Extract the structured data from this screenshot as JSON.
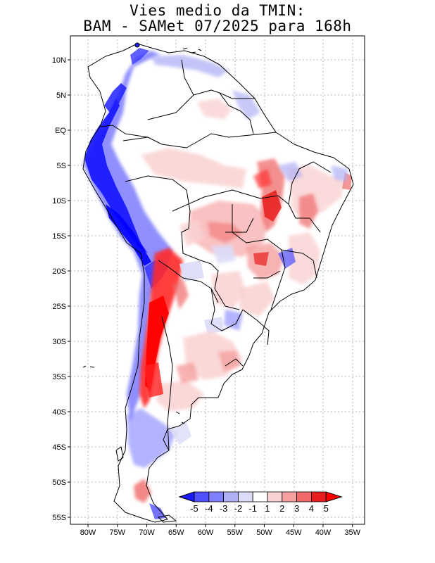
{
  "title": {
    "line1": "Vies medio da TMIN:",
    "line2": "BAM - SAMet 07/2025  para 168h"
  },
  "map": {
    "lat_labels": [
      "10N",
      "5N",
      "EQ",
      "5S",
      "10S",
      "15S",
      "20S",
      "25S",
      "30S",
      "35S",
      "40S",
      "45S",
      "50S",
      "55S"
    ],
    "lon_labels": [
      "80W",
      "75W",
      "70W",
      "65W",
      "60W",
      "55W",
      "50W",
      "45W",
      "40W",
      "35W"
    ],
    "lat_range": [
      -55.5,
      13.5
    ],
    "lon_range": [
      -83,
      -35
    ]
  },
  "colorbar": {
    "labels": [
      "-5",
      "-4",
      "-3",
      "-2",
      "-1",
      "1",
      "2",
      "3",
      "4",
      "5"
    ],
    "colors": [
      "#1a1aff",
      "#5050ff",
      "#8080ff",
      "#b0b0f6",
      "#dcdcf8",
      "#ffffff",
      "#fad2d2",
      "#f6a0a0",
      "#f06a6a",
      "#e81e1e",
      "#ff0000"
    ]
  },
  "colors": {
    "land": "#ffffff",
    "border": "#000000",
    "grid": "#b0b0b0"
  }
}
